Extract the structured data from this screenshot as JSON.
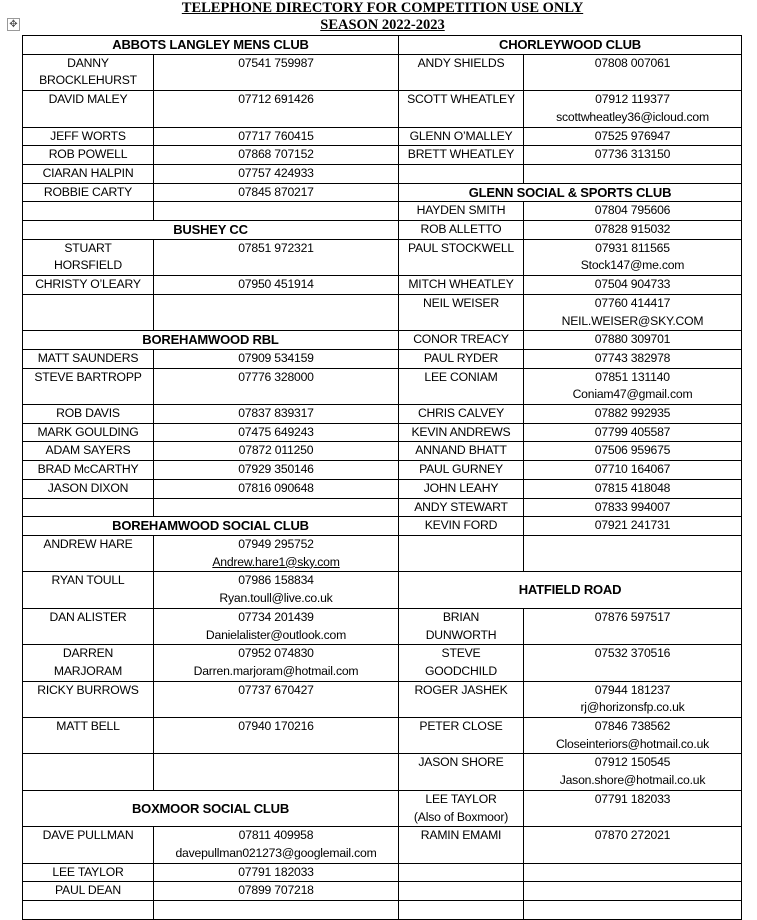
{
  "document": {
    "title": "TELEPHONE DIRECTORY FOR COMPETITION USE ONLY",
    "subtitle": "SEASON 2022-2023",
    "table_move_icon": "four-way-arrow-icon"
  },
  "rows": [
    [
      {
        "header": "ABBOTS LANGLEY MENS CLUB"
      },
      {
        "header": "CHORLEYWOOD CLUB"
      }
    ],
    [
      {
        "lines": [
          "DANNY",
          "BROCKLEHURST"
        ]
      },
      {
        "lines": [
          "07541 759987"
        ]
      },
      {
        "lines": [
          "ANDY SHIELDS"
        ]
      },
      {
        "lines": [
          "07808 007061"
        ]
      }
    ],
    [
      {
        "lines": [
          "DAVID MALEY"
        ]
      },
      {
        "lines": [
          "07712 691426"
        ]
      },
      {
        "lines": [
          "SCOTT WHEATLEY"
        ]
      },
      {
        "lines": [
          "07912 119377",
          "scottwheatley36@icloud.com"
        ]
      }
    ],
    [
      {
        "lines": [
          "JEFF WORTS"
        ]
      },
      {
        "lines": [
          "07717 760415"
        ]
      },
      {
        "lines": [
          "GLENN O’MALLEY"
        ]
      },
      {
        "lines": [
          "07525 976947"
        ]
      }
    ],
    [
      {
        "lines": [
          "ROB POWELL"
        ]
      },
      {
        "lines": [
          "07868 707152"
        ]
      },
      {
        "lines": [
          "BRETT WHEATLEY"
        ]
      },
      {
        "lines": [
          "07736 313150"
        ]
      }
    ],
    [
      {
        "lines": [
          "CIARAN HALPIN"
        ]
      },
      {
        "lines": [
          "07757 424933"
        ]
      },
      {
        "lines": []
      },
      {
        "lines": []
      }
    ],
    [
      {
        "lines": [
          "ROBBIE CARTY"
        ]
      },
      {
        "lines": [
          "07845 870217"
        ]
      },
      {
        "header": "GLENN SOCIAL & SPORTS CLUB"
      }
    ],
    [
      {
        "lines": []
      },
      {
        "lines": []
      },
      {
        "lines": [
          "HAYDEN SMITH"
        ]
      },
      {
        "lines": [
          "07804 795606"
        ]
      }
    ],
    [
      {
        "header": "BUSHEY CC"
      },
      {
        "lines": [
          "ROB ALLETTO"
        ]
      },
      {
        "lines": [
          "07828 915032"
        ]
      }
    ],
    [
      {
        "lines": [
          "STUART",
          "HORSFIELD"
        ]
      },
      {
        "lines": [
          "07851 972321"
        ]
      },
      {
        "lines": [
          "PAUL STOCKWELL"
        ]
      },
      {
        "lines": [
          "07931 811565",
          "Stock147@me.com"
        ]
      }
    ],
    [
      {
        "lines": [
          "CHRISTY O’LEARY"
        ]
      },
      {
        "lines": [
          "07950 451914"
        ]
      },
      {
        "lines": [
          "MITCH WHEATLEY"
        ]
      },
      {
        "lines": [
          "07504 904733"
        ]
      }
    ],
    [
      {
        "lines": []
      },
      {
        "lines": []
      },
      {
        "lines": [
          "NEIL WEISER"
        ]
      },
      {
        "lines": [
          "07760 414417",
          "NEIL.WEISER@SKY.COM"
        ]
      }
    ],
    [
      {
        "header": "BOREHAMWOOD RBL"
      },
      {
        "lines": [
          "CONOR TREACY"
        ]
      },
      {
        "lines": [
          "07880 309701"
        ]
      }
    ],
    [
      {
        "lines": [
          "MATT SAUNDERS"
        ]
      },
      {
        "lines": [
          "07909 534159"
        ]
      },
      {
        "lines": [
          "PAUL RYDER"
        ]
      },
      {
        "lines": [
          "07743 382978"
        ]
      }
    ],
    [
      {
        "lines": [
          "STEVE BARTROPP"
        ]
      },
      {
        "lines": [
          "07776 328000"
        ]
      },
      {
        "lines": [
          "LEE CONIAM"
        ]
      },
      {
        "lines": [
          "07851 131140",
          "Coniam47@gmail.com"
        ]
      }
    ],
    [
      {
        "lines": [
          "ROB DAVIS"
        ]
      },
      {
        "lines": [
          "07837 839317"
        ]
      },
      {
        "lines": [
          "CHRIS CALVEY"
        ]
      },
      {
        "lines": [
          "07882 992935"
        ]
      }
    ],
    [
      {
        "lines": [
          "MARK GOULDING"
        ]
      },
      {
        "lines": [
          "07475 649243"
        ]
      },
      {
        "lines": [
          "KEVIN ANDREWS"
        ]
      },
      {
        "lines": [
          "07799 405587"
        ]
      }
    ],
    [
      {
        "lines": [
          "ADAM SAYERS"
        ]
      },
      {
        "lines": [
          "07872 011250"
        ]
      },
      {
        "lines": [
          "ANNAND BHATT"
        ]
      },
      {
        "lines": [
          "07506 959675"
        ]
      }
    ],
    [
      {
        "lines": [
          "BRAD McCARTHY"
        ]
      },
      {
        "lines": [
          "07929 350146"
        ]
      },
      {
        "lines": [
          "PAUL GURNEY"
        ]
      },
      {
        "lines": [
          "07710 164067"
        ]
      }
    ],
    [
      {
        "lines": [
          "JASON DIXON"
        ]
      },
      {
        "lines": [
          "07816 090648"
        ]
      },
      {
        "lines": [
          "JOHN LEAHY"
        ]
      },
      {
        "lines": [
          "07815 418048"
        ]
      }
    ],
    [
      {
        "lines": []
      },
      {
        "lines": []
      },
      {
        "lines": [
          "ANDY STEWART"
        ]
      },
      {
        "lines": [
          "07833 994007"
        ]
      }
    ],
    [
      {
        "header": "BOREHAMWOOD SOCIAL CLUB"
      },
      {
        "lines": [
          "KEVIN FORD"
        ]
      },
      {
        "lines": [
          "07921 241731"
        ]
      }
    ],
    [
      {
        "lines": [
          "ANDREW HARE"
        ]
      },
      {
        "lines": [
          "07949 295752",
          "Andrew.hare1@sky.com"
        ],
        "link": true
      },
      {
        "lines": []
      },
      {
        "lines": []
      }
    ],
    [
      {
        "lines": [
          "RYAN TOULL"
        ]
      },
      {
        "lines": [
          "07986 158834",
          "Ryan.toull@live.co.uk"
        ]
      },
      {
        "header": "HATFIELD ROAD"
      }
    ],
    [
      {
        "lines": [
          "DAN ALISTER"
        ]
      },
      {
        "lines": [
          "07734 201439",
          "Danielalister@outlook.com"
        ]
      },
      {
        "lines": [
          "BRIAN",
          "DUNWORTH"
        ]
      },
      {
        "lines": [
          "07876 597517"
        ]
      }
    ],
    [
      {
        "lines": [
          "DARREN",
          "MARJORAM"
        ]
      },
      {
        "lines": [
          "07952 074830",
          "Darren.marjoram@hotmail.com"
        ]
      },
      {
        "lines": [
          "STEVE",
          "GOODCHILD"
        ]
      },
      {
        "lines": [
          "07532 370516"
        ]
      }
    ],
    [
      {
        "lines": [
          "RICKY BURROWS"
        ]
      },
      {
        "lines": [
          "07737 670427"
        ]
      },
      {
        "lines": [
          "ROGER JASHEK"
        ]
      },
      {
        "lines": [
          "07944 181237",
          "rj@horizonsfp.co.uk"
        ]
      }
    ],
    [
      {
        "lines": [
          "MATT BELL"
        ]
      },
      {
        "lines": [
          "07940 170216"
        ]
      },
      {
        "lines": [
          "PETER CLOSE"
        ]
      },
      {
        "lines": [
          "07846 738562",
          "Closeinteriors@hotmail.co.uk"
        ]
      }
    ],
    [
      {
        "lines": []
      },
      {
        "lines": []
      },
      {
        "lines": [
          "JASON SHORE"
        ]
      },
      {
        "lines": [
          "07912 150545",
          "Jason.shore@hotmail.co.uk"
        ]
      }
    ],
    [
      {
        "header": "BOXMOOR SOCIAL CLUB"
      },
      {
        "lines": [
          "LEE TAYLOR",
          "(Also of Boxmoor)"
        ]
      },
      {
        "lines": [
          "07791 182033"
        ]
      }
    ],
    [
      {
        "lines": [
          "DAVE PULLMAN"
        ]
      },
      {
        "lines": [
          "07811 409958",
          "davepullman021273@googlemail.com"
        ]
      },
      {
        "lines": [
          "RAMIN EMAMI"
        ]
      },
      {
        "lines": [
          "07870 272021"
        ]
      }
    ],
    [
      {
        "lines": [
          "LEE TAYLOR"
        ]
      },
      {
        "lines": [
          "07791 182033"
        ]
      },
      {
        "lines": []
      },
      {
        "lines": []
      }
    ],
    [
      {
        "lines": [
          "PAUL DEAN"
        ]
      },
      {
        "lines": [
          "07899 707218"
        ]
      },
      {
        "lines": []
      },
      {
        "lines": []
      }
    ],
    [
      {
        "lines": []
      },
      {
        "lines": []
      },
      {
        "lines": []
      },
      {
        "lines": []
      }
    ]
  ]
}
